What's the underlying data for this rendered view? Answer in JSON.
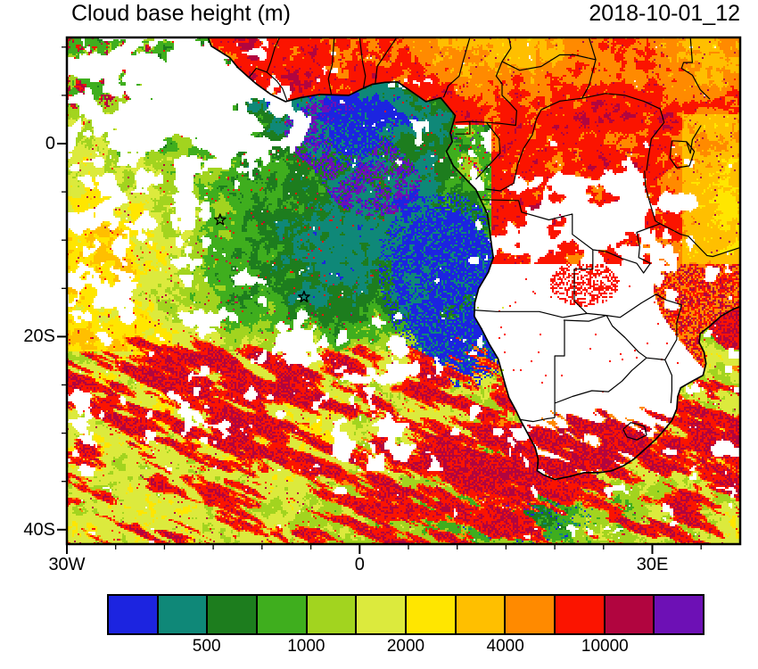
{
  "title": "Cloud base height (m)",
  "timestamp": "2018-10-01_12",
  "axes": {
    "y_tick_labels": [
      {
        "text": "0",
        "lat": 0
      },
      {
        "text": "20S",
        "lat": -20
      },
      {
        "text": "40S",
        "lat": -40
      }
    ],
    "x_tick_labels": [
      {
        "text": "30W",
        "lon": -30
      },
      {
        "text": "0",
        "lon": 0
      },
      {
        "text": "30E",
        "lon": 30
      }
    ]
  },
  "colorbar": {
    "colors": [
      "#1c24e0",
      "#0f8878",
      "#1d7d1e",
      "#3fae1e",
      "#a2d41f",
      "#dcea3d",
      "#ffe600",
      "#ffbf00",
      "#ff8a00",
      "#fb1400",
      "#b1053f",
      "#6d10b5"
    ],
    "tick_labels": [
      {
        "text": "500",
        "boundary_index": 2
      },
      {
        "text": "1000",
        "boundary_index": 4
      },
      {
        "text": "2000",
        "boundary_index": 6
      },
      {
        "text": "4000",
        "boundary_index": 8
      },
      {
        "text": "10000",
        "boundary_index": 10
      }
    ]
  },
  "markers": [
    {
      "name": "station-star-1",
      "lon": -14.3,
      "lat": -7.9
    },
    {
      "name": "station-star-2",
      "lon": -5.7,
      "lat": -15.9
    }
  ]
}
